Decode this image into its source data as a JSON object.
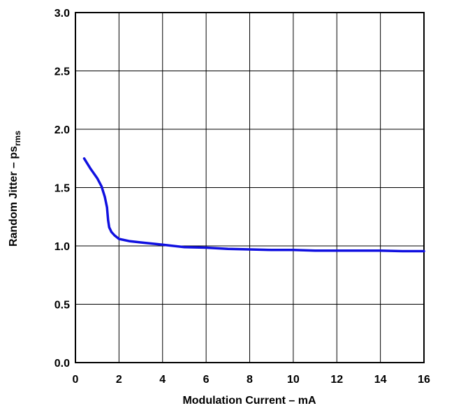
{
  "chart_data": {
    "type": "line",
    "xlabel": "Modulation Current – mA",
    "ylabel_main": "Random Jitter – ps",
    "ylabel_sub": "rms",
    "xlim": [
      0,
      16
    ],
    "ylim": [
      0,
      3.0
    ],
    "x_ticks": [
      "0",
      "2",
      "4",
      "6",
      "8",
      "10",
      "12",
      "14",
      "16"
    ],
    "y_ticks": [
      "0.0",
      "0.5",
      "1.0",
      "1.5",
      "2.0",
      "2.5",
      "3.0"
    ],
    "grid": true,
    "series": [
      {
        "color": "#1010e0",
        "x": [
          0.4,
          0.7,
          1.0,
          1.2,
          1.35,
          1.45,
          1.5,
          1.55,
          1.65,
          1.8,
          2.0,
          2.5,
          3.0,
          4.0,
          5.0,
          6.0,
          7.0,
          8.0,
          9.0,
          10.0,
          11.0,
          12.0,
          13.0,
          14.0,
          15.0,
          16.0
        ],
        "y": [
          1.75,
          1.66,
          1.58,
          1.51,
          1.42,
          1.33,
          1.22,
          1.16,
          1.12,
          1.09,
          1.06,
          1.04,
          1.03,
          1.01,
          0.99,
          0.985,
          0.975,
          0.97,
          0.965,
          0.965,
          0.96,
          0.96,
          0.96,
          0.96,
          0.955,
          0.955
        ]
      }
    ]
  }
}
